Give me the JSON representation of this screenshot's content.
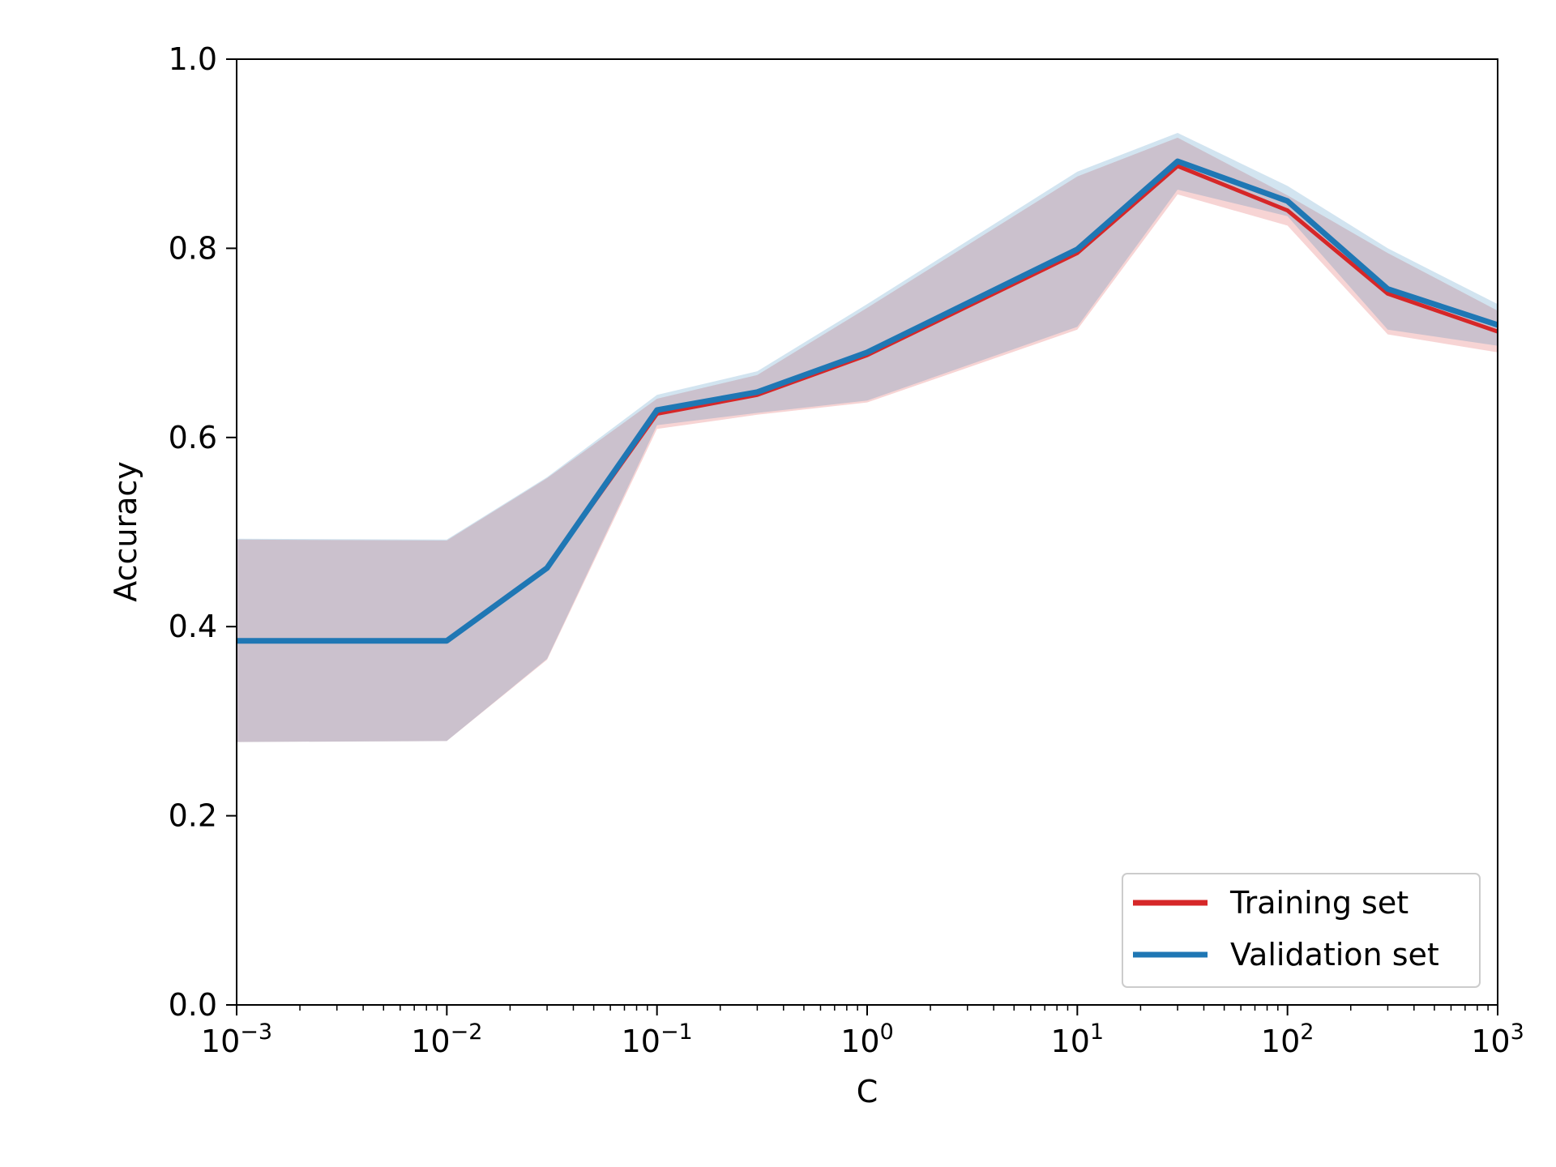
{
  "chart_data": {
    "type": "line",
    "xlabel": "C",
    "ylabel": "Accuracy",
    "xscale": "log",
    "xlim": [
      0.001,
      1000
    ],
    "ylim": [
      0.0,
      1.0
    ],
    "grid": false,
    "x": [
      0.001,
      0.01,
      0.03,
      0.1,
      0.3,
      1,
      10,
      30,
      100,
      300,
      1000
    ],
    "xticks": [
      {
        "value": 0.001,
        "base": "10",
        "exp": "−3"
      },
      {
        "value": 0.01,
        "base": "10",
        "exp": "−2"
      },
      {
        "value": 0.1,
        "base": "10",
        "exp": "−1"
      },
      {
        "value": 1,
        "base": "10",
        "exp": "0"
      },
      {
        "value": 10,
        "base": "10",
        "exp": "1"
      },
      {
        "value": 100,
        "base": "10",
        "exp": "2"
      },
      {
        "value": 1000,
        "base": "10",
        "exp": "3"
      }
    ],
    "yticks": [
      {
        "value": 0.0,
        "label": "0.0"
      },
      {
        "value": 0.2,
        "label": "0.2"
      },
      {
        "value": 0.4,
        "label": "0.4"
      },
      {
        "value": 0.6,
        "label": "0.6"
      },
      {
        "value": 0.8,
        "label": "0.8"
      },
      {
        "value": 1.0,
        "label": "1.0"
      }
    ],
    "legend": {
      "location": "lower right"
    },
    "series": [
      {
        "name": "Training set",
        "color": "#d62728",
        "values": [
          0.385,
          0.385,
          0.462,
          0.625,
          0.645,
          0.687,
          0.795,
          0.887,
          0.84,
          0.752,
          0.712
        ],
        "lower": [
          0.278,
          0.279,
          0.365,
          0.609,
          0.624,
          0.637,
          0.714,
          0.857,
          0.824,
          0.709,
          0.69
        ],
        "upper": [
          0.492,
          0.491,
          0.557,
          0.641,
          0.666,
          0.737,
          0.876,
          0.917,
          0.856,
          0.795,
          0.734
        ]
      },
      {
        "name": "Validation set",
        "color": "#1f77b4",
        "values": [
          0.385,
          0.385,
          0.462,
          0.629,
          0.648,
          0.69,
          0.799,
          0.892,
          0.85,
          0.757,
          0.719
        ],
        "lower": [
          0.278,
          0.279,
          0.366,
          0.613,
          0.626,
          0.639,
          0.717,
          0.862,
          0.834,
          0.714,
          0.697
        ],
        "upper": [
          0.493,
          0.492,
          0.558,
          0.645,
          0.67,
          0.741,
          0.881,
          0.922,
          0.866,
          0.8,
          0.741
        ]
      }
    ]
  }
}
